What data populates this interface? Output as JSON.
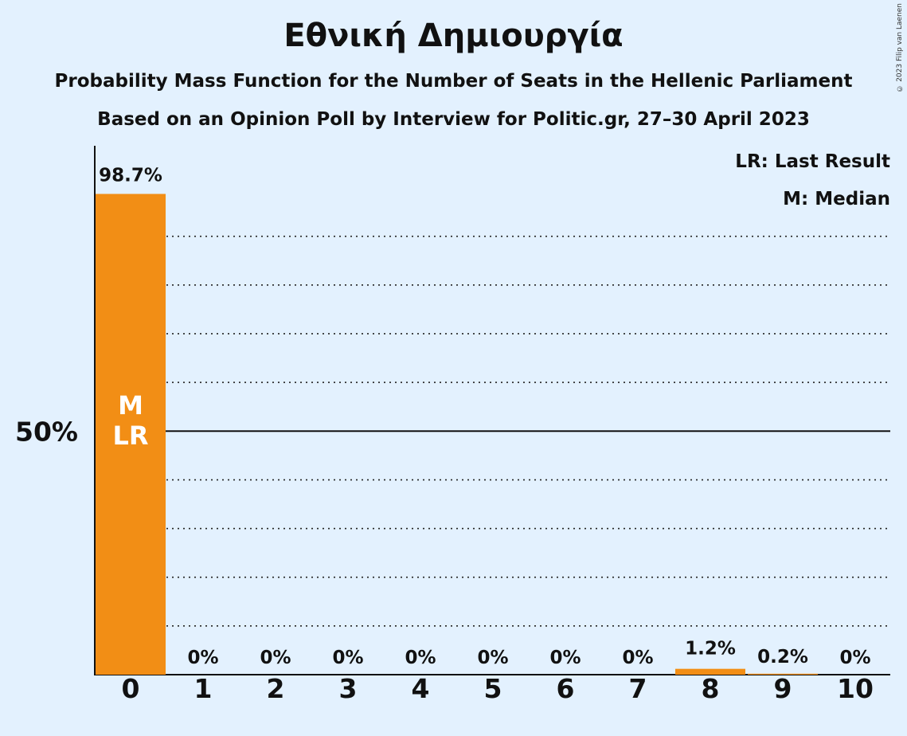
{
  "title": "Εθνική Δημιουργία",
  "subtitle": "Probability Mass Function for the Number of Seats in the Hellenic Parliament",
  "subtitle2": "Based on an Opinion Poll by Interview for Politic.gr, 27–30 April 2023",
  "copyright": "© 2023 Filip van Laenen",
  "legend": {
    "last_result": "LR: Last Result",
    "median": "M: Median"
  },
  "colors": {
    "background": "#e3f1fe",
    "bar": "#f28e15",
    "text": "#111111"
  },
  "chart_data": {
    "type": "bar",
    "categories": [
      "0",
      "1",
      "2",
      "3",
      "4",
      "5",
      "6",
      "7",
      "8",
      "9",
      "10"
    ],
    "values": [
      98.7,
      0,
      0,
      0,
      0,
      0,
      0,
      0,
      1.2,
      0.2,
      0
    ],
    "value_labels": [
      "98.7%",
      "0%",
      "0%",
      "0%",
      "0%",
      "0%",
      "0%",
      "0%",
      "1.2%",
      "0.2%",
      "0%"
    ],
    "ylim": [
      0,
      100
    ],
    "ytick_label": "50%",
    "ytick_value": 50,
    "gridlines_dotted": [
      10,
      20,
      30,
      40,
      60,
      70,
      80,
      90
    ],
    "bar_annotations": [
      {
        "category": "0",
        "lines": [
          "M",
          "LR"
        ]
      }
    ],
    "legend_position": "top-right",
    "grid": true
  }
}
